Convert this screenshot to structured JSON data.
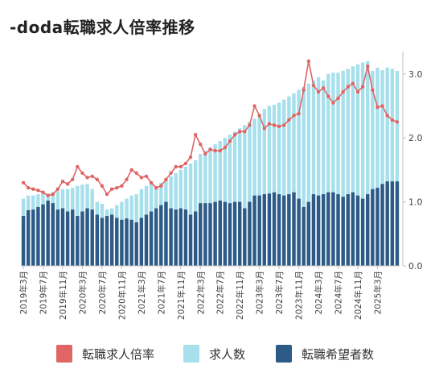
{
  "title": "-doda転職求人倍率推移",
  "colors": {
    "ratio": "#e06565",
    "jobs": "#a6e0ec",
    "seekers": "#2d5a86",
    "axis": "#bfbfbf",
    "text": "#444444"
  },
  "legend": [
    {
      "label": "転職求人倍率",
      "color": "#e06565"
    },
    {
      "label": "求人数",
      "color": "#a6e0ec"
    },
    {
      "label": "転職希望者数",
      "color": "#2d5a86"
    }
  ],
  "chart_data": {
    "type": "bar",
    "ylim": [
      0,
      3.3
    ],
    "y_ticks": [
      "0.0",
      "1.0",
      "2.0",
      "3.0"
    ],
    "y_tick_values": [
      0,
      1,
      2,
      3
    ],
    "x_tick_labels": [
      "2019年3月",
      "2019年7月",
      "2019年11月",
      "2020年3月",
      "2020年7月",
      "2020年11月",
      "2021年3月",
      "2021年7月",
      "2021年11月",
      "2022年3月",
      "2022年7月",
      "2022年11月",
      "2023年3月",
      "2023年7月",
      "2023年11月",
      "2024年3月",
      "2024年7月",
      "2024年11月",
      "2025年3月"
    ],
    "x_tick_every": 4,
    "series": [
      {
        "name": "求人数",
        "kind": "bar",
        "values": [
          1.05,
          1.1,
          1.1,
          1.12,
          1.15,
          1.13,
          1.15,
          1.17,
          1.2,
          1.2,
          1.22,
          1.25,
          1.27,
          1.28,
          1.2,
          1.0,
          0.97,
          0.88,
          0.9,
          0.95,
          1.0,
          1.05,
          1.1,
          1.12,
          1.2,
          1.25,
          1.28,
          1.25,
          1.3,
          1.35,
          1.4,
          1.45,
          1.5,
          1.55,
          1.6,
          1.65,
          1.75,
          1.8,
          1.85,
          1.9,
          1.95,
          2.0,
          2.05,
          2.1,
          2.15,
          2.2,
          2.25,
          2.3,
          2.35,
          2.45,
          2.5,
          2.52,
          2.55,
          2.6,
          2.65,
          2.7,
          2.75,
          2.8,
          2.85,
          2.9,
          2.95,
          2.9,
          3.0,
          3.02,
          3.02,
          3.05,
          3.08,
          3.12,
          3.15,
          3.18,
          3.2,
          3.05,
          3.1,
          3.06,
          3.1,
          3.08,
          3.05
        ]
      },
      {
        "name": "転職希望者数",
        "kind": "bar",
        "values": [
          0.78,
          0.87,
          0.88,
          0.92,
          0.96,
          1.02,
          0.98,
          0.88,
          0.9,
          0.85,
          0.88,
          0.78,
          0.85,
          0.9,
          0.88,
          0.8,
          0.75,
          0.78,
          0.8,
          0.75,
          0.72,
          0.74,
          0.72,
          0.68,
          0.75,
          0.8,
          0.85,
          0.9,
          0.95,
          1.0,
          0.9,
          0.88,
          0.9,
          0.88,
          0.8,
          0.85,
          0.98,
          0.98,
          0.98,
          1.0,
          1.02,
          1.0,
          0.98,
          1.0,
          1.0,
          0.9,
          1.0,
          1.1,
          1.1,
          1.12,
          1.13,
          1.15,
          1.12,
          1.1,
          1.12,
          1.15,
          1.05,
          0.92,
          1.0,
          1.12,
          1.1,
          1.12,
          1.15,
          1.15,
          1.12,
          1.08,
          1.12,
          1.15,
          1.1,
          1.05,
          1.12,
          1.2,
          1.22,
          1.28,
          1.32,
          1.32,
          1.32
        ]
      },
      {
        "name": "転職求人倍率",
        "kind": "line",
        "values": [
          1.3,
          1.22,
          1.2,
          1.18,
          1.15,
          1.1,
          1.12,
          1.2,
          1.32,
          1.28,
          1.35,
          1.55,
          1.45,
          1.38,
          1.4,
          1.35,
          1.25,
          1.12,
          1.2,
          1.22,
          1.25,
          1.35,
          1.5,
          1.45,
          1.38,
          1.4,
          1.3,
          1.22,
          1.25,
          1.35,
          1.45,
          1.55,
          1.55,
          1.6,
          1.7,
          2.05,
          1.9,
          1.75,
          1.82,
          1.8,
          1.8,
          1.85,
          1.95,
          2.05,
          2.1,
          2.1,
          2.2,
          2.5,
          2.35,
          2.15,
          2.22,
          2.2,
          2.18,
          2.2,
          2.28,
          2.35,
          2.38,
          2.75,
          3.2,
          2.82,
          2.72,
          2.78,
          2.65,
          2.55,
          2.62,
          2.72,
          2.8,
          2.85,
          2.72,
          2.8,
          3.12,
          2.75,
          2.48,
          2.5,
          2.35,
          2.28,
          2.25
        ]
      }
    ]
  }
}
